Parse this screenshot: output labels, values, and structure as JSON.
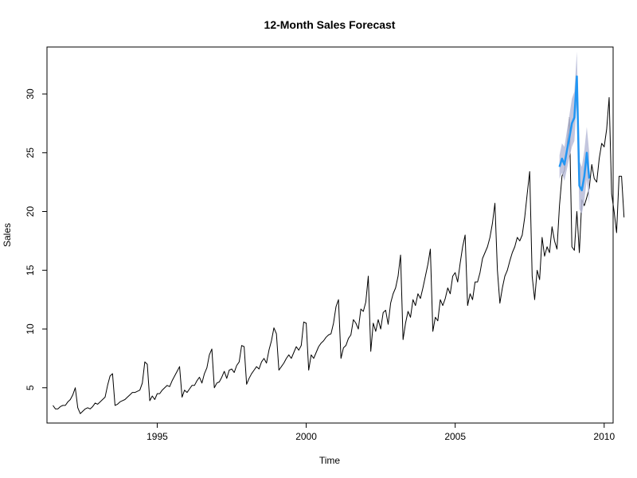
{
  "chart_data": {
    "type": "line",
    "title": "12-Month Sales Forecast",
    "xlabel": "Time",
    "ylabel": "Sales",
    "xlim": [
      1991.3,
      2010.3
    ],
    "ylim": [
      2.0,
      34.0
    ],
    "x_ticks": [
      1995,
      2000,
      2005,
      2010
    ],
    "y_ticks": [
      5,
      10,
      15,
      20,
      25,
      30
    ],
    "grid": false,
    "legend": "none",
    "series": [
      {
        "start": 1991.5,
        "frequency": 12,
        "color": "#000000",
        "values": [
          3.5,
          3.2,
          3.2,
          3.4,
          3.5,
          3.5,
          3.8,
          4.0,
          4.4,
          5.0,
          3.3,
          2.8,
          3.0,
          3.2,
          3.3,
          3.2,
          3.4,
          3.7,
          3.6,
          3.8,
          4.0,
          4.2,
          5.2,
          6.0,
          6.2,
          3.5,
          3.6,
          3.8,
          3.9,
          4.0,
          4.2,
          4.4,
          4.6,
          4.6,
          4.7,
          4.8,
          5.4,
          7.2,
          7.0,
          3.9,
          4.3,
          4.0,
          4.5,
          4.5,
          4.8,
          5.0,
          5.2,
          5.1,
          5.6,
          6.0,
          6.4,
          6.8,
          4.2,
          4.8,
          4.6,
          4.9,
          5.2,
          5.2,
          5.6,
          5.9,
          5.4,
          6.2,
          6.7,
          7.8,
          8.3,
          5.0,
          5.4,
          5.5,
          5.9,
          6.4,
          5.8,
          6.5,
          6.6,
          6.3,
          6.9,
          7.2,
          8.6,
          8.5,
          5.3,
          5.8,
          6.2,
          6.5,
          6.8,
          6.6,
          7.2,
          7.5,
          7.1,
          8.2,
          9.0,
          10.1,
          9.6,
          6.5,
          6.8,
          7.1,
          7.5,
          7.8,
          7.5,
          8.0,
          8.5,
          8.2,
          8.6,
          10.6,
          10.5,
          6.5,
          7.8,
          7.5,
          8.0,
          8.5,
          8.8,
          9.0,
          9.3,
          9.5,
          9.6,
          10.5,
          11.9,
          12.5,
          7.5,
          8.4,
          8.6,
          9.2,
          9.5,
          10.8,
          10.5,
          10.0,
          11.7,
          11.5,
          12.3,
          14.5,
          8.1,
          10.5,
          9.8,
          10.8,
          10.0,
          11.4,
          11.6,
          10.4,
          12.2,
          13.0,
          13.5,
          14.5,
          16.3,
          9.1,
          10.5,
          11.5,
          11.0,
          12.5,
          12.0,
          13.0,
          12.6,
          13.5,
          14.5,
          15.5,
          16.8,
          9.8,
          11.0,
          10.7,
          12.5,
          12.0,
          12.6,
          13.5,
          13.0,
          14.5,
          14.8,
          14.0,
          15.6,
          17.0,
          18.0,
          12.0,
          13.0,
          12.5,
          14.0,
          14.0,
          14.8,
          16.0,
          16.5,
          17.0,
          17.8,
          19.0,
          20.7,
          15.0,
          12.2,
          13.5,
          14.5,
          15.0,
          15.8,
          16.5,
          17.0,
          17.8,
          17.5,
          18.0,
          19.5,
          21.5,
          23.4,
          14.5,
          12.5,
          15.0,
          14.2,
          17.8,
          16.2,
          17.0,
          16.5,
          18.7,
          17.5,
          16.8,
          20.5,
          23.0,
          23.5,
          25.5,
          28.0,
          17.0,
          16.7,
          20.0,
          16.5,
          21.0,
          20.5,
          21.2,
          22.0,
          24.0,
          22.8,
          22.5,
          24.5,
          25.8,
          25.5,
          27.0,
          29.7,
          21.5,
          20.0,
          18.2,
          23.0,
          23.0,
          19.5
        ]
      },
      {
        "start": 2008.5,
        "frequency": 12,
        "color": "#2196f3",
        "interval_color": "#b8bcd8",
        "values": [
          23.8,
          24.5,
          24.0,
          25.2,
          26.3,
          27.5,
          28.0,
          31.5,
          22.2,
          21.8,
          23.0,
          25.0,
          22.8
        ],
        "lower": [
          22.8,
          23.3,
          22.6,
          23.6,
          24.6,
          25.5,
          26.0,
          29.4,
          20.2,
          19.8,
          20.9,
          22.7,
          20.6
        ],
        "upper": [
          24.8,
          25.8,
          25.5,
          26.9,
          28.2,
          29.6,
          30.2,
          33.6,
          24.3,
          23.8,
          25.2,
          27.2,
          25.0
        ]
      }
    ]
  }
}
